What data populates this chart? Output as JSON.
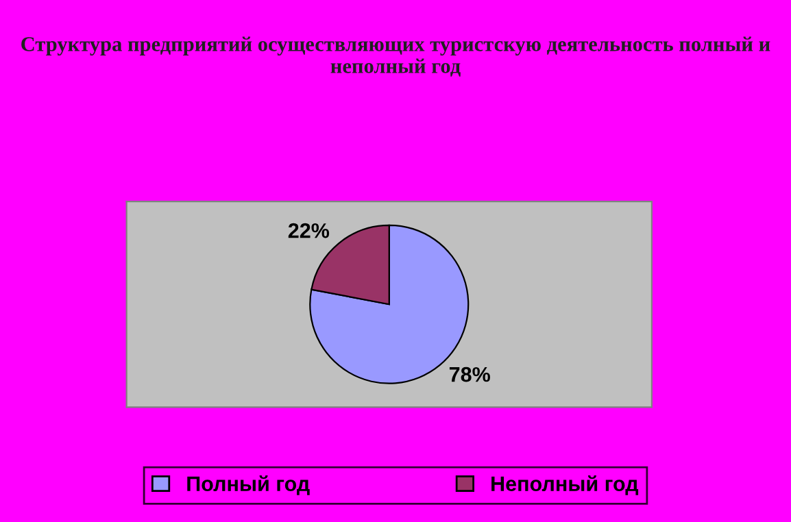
{
  "chart_data": {
    "type": "pie",
    "title": "Структура предприятий осуществляющих туристскую деятельность полный и неполный год",
    "categories": [
      "Полный год",
      "Неполный год"
    ],
    "values": [
      78,
      22
    ],
    "colors": [
      "#9999ff",
      "#993366"
    ],
    "value_labels": [
      "78%",
      "22%"
    ],
    "legend": "bottom"
  }
}
